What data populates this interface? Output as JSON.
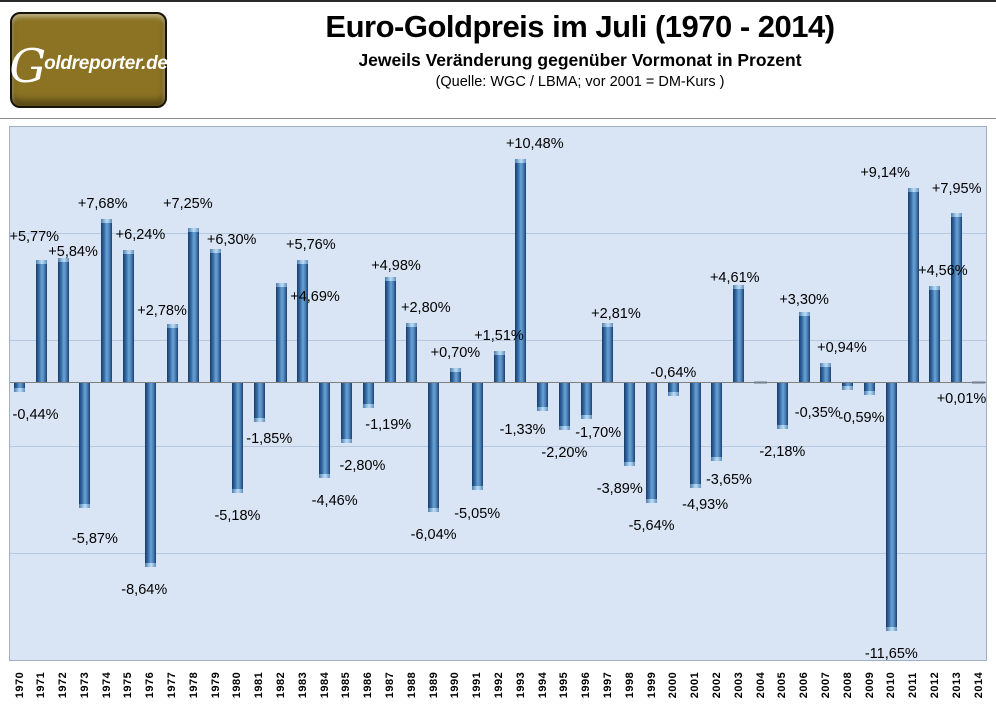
{
  "header": {
    "logo_g": "G",
    "logo_rest": "oldreporter.de",
    "title": "Euro-Goldpreis im Juli (1970 - 2014)",
    "subtitle": "Jeweils Veränderung gegenüber Vormonat in Prozent",
    "source": "(Quelle: WGC / LBMA; vor 2001 = DM-Kurs )"
  },
  "colors": {
    "plot_background": "#d9e4f4",
    "bar_dark": "#1f4e82",
    "bar_light": "#68a0d4",
    "gridline": "#b7c7de",
    "zero_axis": "#7f7f7f",
    "chart_border": "#9fb0c6",
    "logo_background": "#8b7323",
    "text": "#000000"
  },
  "chart_data": {
    "type": "bar",
    "title": "Euro-Goldpreis im Juli (1970 - 2014)",
    "subtitle": "Jeweils Veränderung gegenüber Vormonat in Prozent",
    "xlabel": "",
    "ylabel": "",
    "ylim": [
      -13,
      12
    ],
    "grid": true,
    "gridline_values": [
      7,
      2,
      -3,
      -8
    ],
    "legend": false,
    "categories": [
      "1970",
      "1971",
      "1972",
      "1973",
      "1974",
      "1975",
      "1976",
      "1977",
      "1978",
      "1979",
      "1980",
      "1981",
      "1982",
      "1983",
      "1984",
      "1985",
      "1986",
      "1987",
      "1988",
      "1989",
      "1990",
      "1991",
      "1992",
      "1993",
      "1994",
      "1995",
      "1996",
      "1997",
      "1998",
      "1999",
      "2000",
      "2001",
      "2002",
      "2003",
      "2004",
      "2005",
      "2006",
      "2007",
      "2008",
      "2009",
      "2010",
      "2011",
      "2012",
      "2013",
      "2014"
    ],
    "values": [
      -0.44,
      5.77,
      5.84,
      -5.87,
      7.68,
      6.24,
      -8.64,
      2.78,
      7.25,
      6.3,
      -5.18,
      -1.85,
      4.69,
      5.76,
      -4.46,
      -2.8,
      -1.19,
      4.98,
      2.8,
      -6.04,
      0.7,
      -5.05,
      1.51,
      10.48,
      -1.33,
      -2.2,
      -1.7,
      2.81,
      -3.89,
      -5.64,
      -0.64,
      -4.93,
      -3.65,
      4.61,
      0.0,
      -2.18,
      3.3,
      0.94,
      -0.35,
      -0.59,
      -11.65,
      9.14,
      4.56,
      7.95,
      0.01
    ],
    "labels": [
      "-0,44%",
      "+5,77%",
      "+5,84%",
      "-5,87%",
      "+7,68%",
      "+6,24%",
      "-8,64%",
      "+2,78%",
      "+7,25%",
      "+6,30%",
      "-5,18%",
      "-1,85%",
      "+4,69%",
      "+5,76%",
      "-4,46%",
      "-2,80%",
      "-1,19%",
      "+4,98%",
      "+2,80%",
      "-6,04%",
      "+0,70%",
      "-5,05%",
      "+1,51%",
      "+10,48%",
      "-1,33%",
      "-2,20%",
      "-1,70%",
      "+2,81%",
      "-3,89%",
      "-5,64%",
      "-0,64%",
      "-4,93%",
      "-3,65%",
      "+4,61%",
      "",
      "-2,18%",
      "+3,30%",
      "+0,94%",
      "-0,35%",
      "-0,59%",
      "-11,65%",
      "+9,14%",
      "+4,56%",
      "+7,95%",
      "+0,01%"
    ],
    "label_offsets": {
      "1970": [
        16,
        0
      ],
      "1971": [
        -7,
        -8
      ],
      "1972": [
        10,
        9
      ],
      "1973": [
        10,
        8
      ],
      "1974": [
        -4,
        0
      ],
      "1975": [
        12,
        0
      ],
      "1976": [
        -6,
        0
      ],
      "1977": [
        -10,
        2
      ],
      "1978": [
        -6,
        -9
      ],
      "1979": [
        16,
        6
      ],
      "1981": [
        10,
        -6
      ],
      "1982": [
        34,
        29
      ],
      "1983": [
        8,
        0
      ],
      "1984": [
        10,
        0
      ],
      "1985": [
        16,
        0
      ],
      "1986": [
        20,
        -6
      ],
      "1987": [
        6,
        4
      ],
      "1988": [
        14,
        0
      ],
      "1993": [
        14,
        0
      ],
      "1994": [
        -20,
        -4
      ],
      "1996": [
        12,
        -9
      ],
      "1997": [
        8,
        6
      ],
      "1998": [
        -10,
        0
      ],
      "2000": [
        0,
        -46
      ],
      "2001": [
        10,
        -6
      ],
      "2002": [
        12,
        -4
      ],
      "2003": [
        -4,
        8
      ],
      "2006": [
        0,
        3
      ],
      "2007": [
        16,
        0
      ],
      "2008": [
        -30,
        0
      ],
      "2009": [
        -8,
        0
      ],
      "2011": [
        -28,
        0
      ],
      "2012": [
        8,
        0
      ],
      "2013": [
        0,
        -9
      ],
      "2014": [
        -17,
        31
      ]
    }
  }
}
